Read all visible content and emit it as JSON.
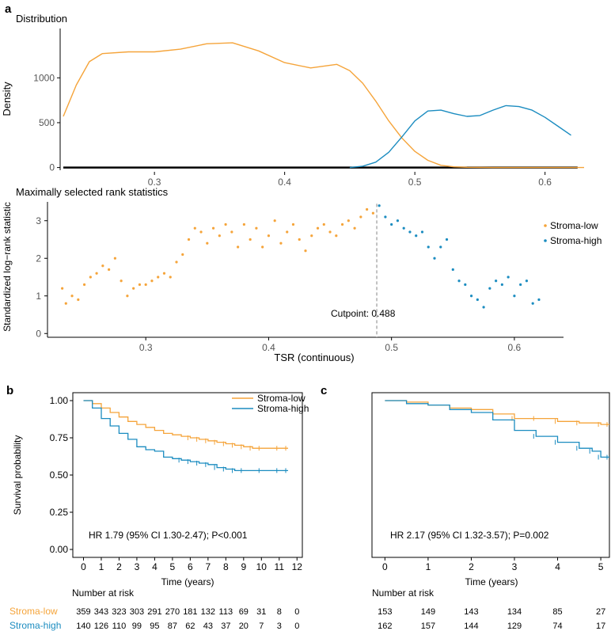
{
  "colors": {
    "low": "#F5A43A",
    "high": "#1B8CC0",
    "axis": "#000000",
    "gray": "#555555",
    "cut": "#999999"
  },
  "panel_labels": {
    "a": "a",
    "b": "b",
    "c": "c"
  },
  "chart_data": [
    {
      "id": "density",
      "type": "area",
      "title": "Distribution",
      "xlabel": "",
      "ylabel": "Density",
      "xlim": [
        0.23,
        0.63
      ],
      "ylim": [
        -30,
        1550
      ],
      "xticks": [
        "0.3",
        "0.4",
        "0.5",
        "0.6"
      ],
      "xtick_values": [
        0.3,
        0.4,
        0.5,
        0.6
      ],
      "yticks": [
        "0",
        "500",
        "1000"
      ],
      "ytick_values": [
        0,
        500,
        1000
      ],
      "series": [
        {
          "name": "Stroma-low",
          "x": [
            0.23,
            0.24,
            0.25,
            0.26,
            0.28,
            0.3,
            0.32,
            0.34,
            0.36,
            0.38,
            0.4,
            0.42,
            0.44,
            0.45,
            0.46,
            0.47,
            0.48,
            0.49,
            0.5,
            0.51,
            0.52,
            0.53,
            0.54,
            0.56,
            0.6,
            0.63
          ],
          "y": [
            570,
            920,
            1180,
            1270,
            1290,
            1290,
            1320,
            1380,
            1390,
            1300,
            1170,
            1110,
            1150,
            1080,
            940,
            740,
            520,
            330,
            180,
            80,
            25,
            8,
            3,
            0,
            0,
            0
          ]
        },
        {
          "name": "Stroma-high",
          "x": [
            0.45,
            0.46,
            0.47,
            0.48,
            0.49,
            0.5,
            0.51,
            0.52,
            0.53,
            0.54,
            0.55,
            0.56,
            0.57,
            0.58,
            0.59,
            0.6,
            0.61,
            0.62
          ],
          "y": [
            0,
            15,
            60,
            170,
            340,
            520,
            630,
            640,
            600,
            570,
            580,
            640,
            690,
            680,
            640,
            560,
            460,
            360
          ]
        }
      ]
    },
    {
      "id": "maxstat",
      "type": "scatter",
      "title": "Maximally selected rank statistics",
      "xlabel": "TSR (continuous)",
      "ylabel": "Standardized log−rank statistic",
      "xlim": [
        0.22,
        0.64
      ],
      "ylim": [
        -0.1,
        3.5
      ],
      "xticks": [
        "0.3",
        "0.4",
        "0.5",
        "0.6"
      ],
      "xtick_values": [
        0.3,
        0.4,
        0.5,
        0.6
      ],
      "yticks": [
        "0",
        "1",
        "2",
        "3"
      ],
      "ytick_values": [
        0,
        1,
        2,
        3
      ],
      "cutpoint": 0.488,
      "cutpoint_label": "Cutpoint: 0.488",
      "legend": [
        "Stroma-low",
        "Stroma-high"
      ],
      "series": [
        {
          "name": "Stroma-low",
          "x": [
            0.232,
            0.235,
            0.24,
            0.245,
            0.25,
            0.255,
            0.26,
            0.265,
            0.27,
            0.275,
            0.28,
            0.285,
            0.29,
            0.295,
            0.3,
            0.305,
            0.31,
            0.315,
            0.32,
            0.325,
            0.33,
            0.335,
            0.34,
            0.345,
            0.35,
            0.355,
            0.36,
            0.365,
            0.37,
            0.375,
            0.38,
            0.385,
            0.39,
            0.395,
            0.4,
            0.405,
            0.41,
            0.415,
            0.42,
            0.425,
            0.43,
            0.435,
            0.44,
            0.445,
            0.45,
            0.455,
            0.46,
            0.465,
            0.47,
            0.475,
            0.48,
            0.485
          ],
          "y": [
            1.2,
            0.8,
            1.0,
            0.9,
            1.3,
            1.5,
            1.6,
            1.8,
            1.7,
            2.0,
            1.4,
            1.0,
            1.2,
            1.3,
            1.3,
            1.4,
            1.5,
            1.6,
            1.5,
            1.9,
            2.1,
            2.5,
            2.8,
            2.7,
            2.4,
            2.8,
            2.6,
            2.9,
            2.7,
            2.3,
            2.9,
            2.5,
            2.8,
            2.3,
            2.6,
            3.0,
            2.4,
            2.7,
            2.9,
            2.5,
            2.2,
            2.6,
            2.8,
            2.9,
            2.7,
            2.6,
            2.9,
            3.0,
            2.8,
            3.1,
            3.3,
            3.2
          ]
        },
        {
          "name": "Stroma-high",
          "x": [
            0.49,
            0.495,
            0.5,
            0.505,
            0.51,
            0.515,
            0.52,
            0.525,
            0.53,
            0.535,
            0.54,
            0.545,
            0.55,
            0.555,
            0.56,
            0.565,
            0.57,
            0.575,
            0.58,
            0.585,
            0.59,
            0.595,
            0.6,
            0.605,
            0.61,
            0.615,
            0.62
          ],
          "y": [
            3.4,
            3.1,
            2.9,
            3.0,
            2.8,
            2.7,
            2.6,
            2.7,
            2.3,
            2.0,
            2.3,
            2.5,
            1.7,
            1.4,
            1.3,
            1.0,
            0.9,
            0.7,
            1.2,
            1.4,
            1.3,
            1.5,
            1.0,
            1.3,
            1.4,
            0.8,
            0.9
          ]
        }
      ]
    },
    {
      "id": "km_b",
      "type": "line",
      "title": "",
      "xlabel": "Time (years)",
      "ylabel": "Survival probability",
      "xlim": [
        -0.6,
        12.3
      ],
      "ylim": [
        0,
        1
      ],
      "xticks": [
        "0",
        "1",
        "2",
        "3",
        "4",
        "5",
        "6",
        "7",
        "8",
        "9",
        "10",
        "11",
        "12"
      ],
      "xtick_values": [
        0,
        1,
        2,
        3,
        4,
        5,
        6,
        7,
        8,
        9,
        10,
        11,
        12
      ],
      "yticks": [
        "0.00",
        "0.25",
        "0.50",
        "0.75",
        "1.00"
      ],
      "ytick_values": [
        0,
        0.25,
        0.5,
        0.75,
        1.0
      ],
      "annotation": "HR 1.79 (95% CI 1.30-2.47); P<0.001",
      "legend": [
        "Stroma-low",
        "Stroma-high"
      ],
      "series": [
        {
          "name": "Stroma-low",
          "x": [
            0,
            0.5,
            1,
            1.5,
            2,
            2.5,
            3,
            3.5,
            4,
            4.5,
            5,
            5.5,
            6,
            6.5,
            7,
            7.5,
            8,
            8.5,
            9,
            9.5,
            10,
            11,
            11.5
          ],
          "y": [
            1.0,
            0.98,
            0.95,
            0.92,
            0.89,
            0.86,
            0.84,
            0.82,
            0.8,
            0.78,
            0.77,
            0.76,
            0.75,
            0.74,
            0.73,
            0.72,
            0.71,
            0.7,
            0.69,
            0.68,
            0.68,
            0.68,
            0.68
          ]
        },
        {
          "name": "Stroma-high",
          "x": [
            0,
            0.5,
            1,
            1.5,
            2,
            2.5,
            3,
            3.5,
            4,
            4.5,
            5,
            5.5,
            6,
            6.5,
            7,
            7.5,
            8,
            8.5,
            9,
            10,
            11,
            11.5
          ],
          "y": [
            1.0,
            0.95,
            0.88,
            0.83,
            0.78,
            0.74,
            0.69,
            0.67,
            0.66,
            0.62,
            0.61,
            0.6,
            0.59,
            0.58,
            0.57,
            0.55,
            0.54,
            0.53,
            0.53,
            0.53,
            0.53,
            0.53
          ]
        }
      ],
      "risk_title": "Number at risk",
      "risk": [
        {
          "name": "Stroma-low",
          "values": [
            "359",
            "343",
            "323",
            "303",
            "291",
            "270",
            "181",
            "132",
            "113",
            "69",
            "31",
            "8",
            "0"
          ]
        },
        {
          "name": "Stroma-high",
          "values": [
            "140",
            "126",
            "110",
            "99",
            "95",
            "87",
            "62",
            "43",
            "37",
            "20",
            "7",
            "3",
            "0"
          ]
        }
      ]
    },
    {
      "id": "km_c",
      "type": "line",
      "title": "",
      "xlabel": "Time (years)",
      "ylabel": "",
      "xlim": [
        -0.3,
        5.2
      ],
      "ylim": [
        0,
        1
      ],
      "xticks": [
        "0",
        "1",
        "2",
        "3",
        "4",
        "5"
      ],
      "xtick_values": [
        0,
        1,
        2,
        3,
        4,
        5
      ],
      "annotation": "HR 2.17 (95% CI 1.32-3.57); P=0.002",
      "series": [
        {
          "name": "Stroma-low",
          "x": [
            0,
            0.5,
            1,
            1.5,
            2,
            2.5,
            3,
            3.5,
            4,
            4.5,
            5,
            5.2
          ],
          "y": [
            1.0,
            0.99,
            0.97,
            0.95,
            0.94,
            0.91,
            0.88,
            0.88,
            0.86,
            0.85,
            0.84,
            0.84
          ]
        },
        {
          "name": "Stroma-high",
          "x": [
            0,
            0.5,
            1,
            1.5,
            2,
            2.5,
            3,
            3.5,
            4,
            4.5,
            4.8,
            5,
            5.2
          ],
          "y": [
            1.0,
            0.98,
            0.97,
            0.94,
            0.92,
            0.87,
            0.8,
            0.76,
            0.72,
            0.68,
            0.66,
            0.62,
            0.62
          ]
        }
      ],
      "risk_title": "Number at risk",
      "risk": [
        {
          "name": "Stroma-low",
          "values": [
            "153",
            "149",
            "143",
            "134",
            "85",
            "27"
          ]
        },
        {
          "name": "Stroma-high",
          "values": [
            "162",
            "157",
            "144",
            "129",
            "74",
            "17"
          ]
        }
      ]
    }
  ]
}
